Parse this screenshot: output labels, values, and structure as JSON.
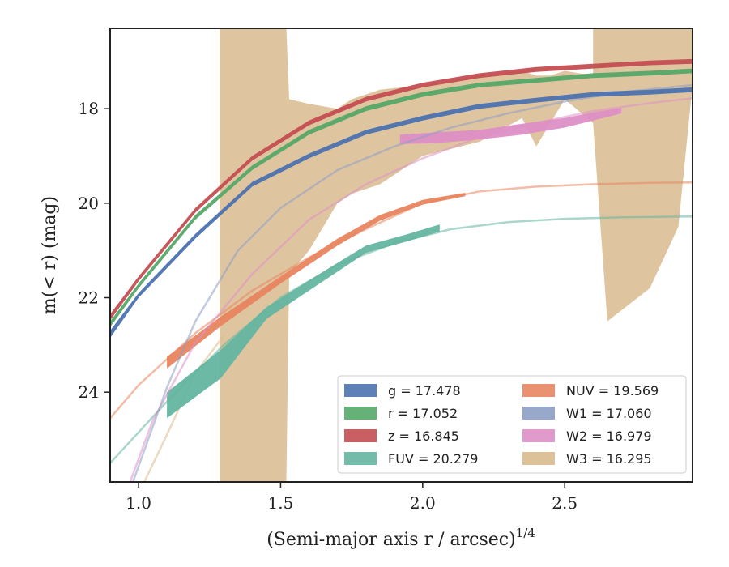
{
  "chart_data": {
    "type": "line",
    "title": "",
    "xlabel": "(Semi-major axis r / arcsec)",
    "xlabel_super": "1/4",
    "ylabel": "m(< r) (mag)",
    "xlim": [
      0.9,
      2.95
    ],
    "ylim": [
      25.9,
      16.3
    ],
    "y_inverted": true,
    "grid": false,
    "legend_position": "lower-right",
    "x_ticks": [
      {
        "value": 1.0,
        "label": "1.0"
      },
      {
        "value": 1.5,
        "label": "1.5"
      },
      {
        "value": 2.0,
        "label": "2.0"
      },
      {
        "value": 2.5,
        "label": "2.5"
      }
    ],
    "y_ticks": [
      {
        "value": 18,
        "label": "18"
      },
      {
        "value": 20,
        "label": "20"
      },
      {
        "value": 22,
        "label": "22"
      },
      {
        "value": 24,
        "label": "24"
      }
    ],
    "series": [
      {
        "name": "g = 17.478",
        "legend_label": "g = 17.478",
        "color": "#4c72b0",
        "band": [
          [
            0.9,
            22.7,
            22.85
          ],
          [
            1.0,
            21.9,
            22.0
          ],
          [
            1.2,
            20.65,
            20.75
          ],
          [
            1.4,
            19.55,
            19.65
          ],
          [
            1.6,
            18.95,
            19.05
          ],
          [
            1.8,
            18.45,
            18.55
          ],
          [
            2.0,
            18.15,
            18.25
          ],
          [
            2.2,
            17.9,
            18.0
          ],
          [
            2.4,
            17.77,
            17.87
          ],
          [
            2.6,
            17.65,
            17.75
          ],
          [
            2.8,
            17.6,
            17.7
          ],
          [
            2.95,
            17.55,
            17.65
          ]
        ],
        "curve_main": [],
        "curve_ext": []
      },
      {
        "name": "r = 17.052",
        "legend_label": "r = 17.052",
        "color": "#55a868",
        "band": [
          [
            0.9,
            22.5,
            22.62
          ],
          [
            1.0,
            21.7,
            21.8
          ],
          [
            1.2,
            20.25,
            20.35
          ],
          [
            1.4,
            19.2,
            19.3
          ],
          [
            1.6,
            18.45,
            18.55
          ],
          [
            1.8,
            17.95,
            18.05
          ],
          [
            2.0,
            17.65,
            17.75
          ],
          [
            2.2,
            17.45,
            17.55
          ],
          [
            2.4,
            17.35,
            17.45
          ],
          [
            2.6,
            17.25,
            17.35
          ],
          [
            2.8,
            17.2,
            17.3
          ],
          [
            2.95,
            17.15,
            17.25
          ]
        ],
        "curve_main": [],
        "curve_ext": []
      },
      {
        "name": "z = 16.845",
        "legend_label": "z = 16.845",
        "color": "#c44e52",
        "band": [
          [
            0.9,
            22.35,
            22.48
          ],
          [
            1.0,
            21.55,
            21.65
          ],
          [
            1.2,
            20.1,
            20.2
          ],
          [
            1.4,
            19.0,
            19.1
          ],
          [
            1.6,
            18.25,
            18.35
          ],
          [
            1.8,
            17.75,
            17.85
          ],
          [
            2.0,
            17.45,
            17.55
          ],
          [
            2.2,
            17.25,
            17.35
          ],
          [
            2.4,
            17.12,
            17.22
          ],
          [
            2.6,
            17.05,
            17.15
          ],
          [
            2.8,
            16.98,
            17.08
          ],
          [
            2.95,
            16.95,
            17.05
          ]
        ],
        "curve_main": [],
        "curve_ext": []
      },
      {
        "name": "FUV = 20.279",
        "legend_label": "FUV = 20.279",
        "color": "#64b5a0",
        "band": [
          [
            1.1,
            24.0,
            24.55
          ],
          [
            1.29,
            23.1,
            23.7
          ],
          [
            1.45,
            22.2,
            22.45
          ],
          [
            1.65,
            21.45,
            21.65
          ],
          [
            1.8,
            20.9,
            21.05
          ],
          [
            1.95,
            20.65,
            20.8
          ],
          [
            2.06,
            20.45,
            20.6
          ]
        ],
        "curve_main": [],
        "curve_ext": [
          [
            0.9,
            25.5
          ],
          [
            1.1,
            24.2
          ],
          [
            1.3,
            23.0
          ],
          [
            1.5,
            22.0
          ],
          [
            1.7,
            21.3
          ],
          [
            1.9,
            20.85
          ],
          [
            2.1,
            20.55
          ],
          [
            2.3,
            20.4
          ],
          [
            2.5,
            20.33
          ],
          [
            2.7,
            20.3
          ],
          [
            2.95,
            20.28
          ]
        ]
      },
      {
        "name": "NUV = 19.569",
        "legend_label": "NUV = 19.569",
        "color": "#e8855f",
        "band": [
          [
            1.1,
            23.25,
            23.5
          ],
          [
            1.29,
            22.4,
            22.6
          ],
          [
            1.5,
            21.55,
            21.7
          ],
          [
            1.7,
            20.75,
            20.9
          ],
          [
            1.85,
            20.25,
            20.37
          ],
          [
            2.0,
            19.93,
            20.03
          ],
          [
            2.15,
            19.78,
            19.85
          ]
        ],
        "curve_main": [],
        "curve_ext": [
          [
            0.9,
            24.55
          ],
          [
            1.0,
            23.85
          ],
          [
            1.2,
            22.75
          ],
          [
            1.4,
            21.85
          ],
          [
            1.6,
            21.15
          ],
          [
            1.8,
            20.55
          ],
          [
            2.0,
            20.0
          ],
          [
            2.2,
            19.75
          ],
          [
            2.4,
            19.65
          ],
          [
            2.6,
            19.6
          ],
          [
            2.8,
            19.57
          ],
          [
            2.95,
            19.56
          ]
        ]
      },
      {
        "name": "W1 = 17.060",
        "legend_label": "W1 = 17.060",
        "color": "#8c9ec4",
        "band": [],
        "curve_main": [],
        "curve_ext": [
          [
            0.98,
            25.9
          ],
          [
            1.1,
            23.9
          ],
          [
            1.2,
            22.5
          ],
          [
            1.35,
            21.0
          ],
          [
            1.5,
            20.1
          ],
          [
            1.7,
            19.3
          ],
          [
            1.9,
            18.8
          ],
          [
            2.1,
            18.4
          ],
          [
            2.3,
            18.1
          ],
          [
            2.5,
            17.85
          ],
          [
            2.7,
            17.65
          ],
          [
            2.95,
            17.5
          ]
        ]
      },
      {
        "name": "W2 = 16.979",
        "legend_label": "W2 = 16.979",
        "color": "#dd8fc6",
        "band": [
          [
            1.92,
            18.55,
            18.75
          ],
          [
            2.05,
            18.5,
            18.73
          ],
          [
            2.2,
            18.45,
            18.65
          ],
          [
            2.35,
            18.32,
            18.55
          ],
          [
            2.5,
            18.2,
            18.4
          ],
          [
            2.6,
            18.08,
            18.25
          ],
          [
            2.7,
            17.98,
            18.1
          ]
        ],
        "curve_main": [],
        "curve_ext": [
          [
            0.97,
            25.9
          ],
          [
            1.05,
            24.6
          ],
          [
            1.2,
            22.95
          ],
          [
            1.4,
            21.5
          ],
          [
            1.6,
            20.35
          ],
          [
            1.8,
            19.6
          ],
          [
            2.0,
            19.05
          ],
          [
            2.2,
            18.6
          ],
          [
            2.4,
            18.3
          ],
          [
            2.6,
            18.05
          ],
          [
            2.8,
            17.88
          ],
          [
            2.95,
            17.78
          ]
        ]
      },
      {
        "name": "W3 = 16.295",
        "legend_label": "W3 = 16.295",
        "color": "#d9bb8e",
        "band": [
          [
            1.285,
            16.3,
            25.9
          ],
          [
            1.52,
            16.3,
            25.9
          ],
          [
            1.53,
            17.8,
            21.5
          ],
          [
            1.6,
            17.9,
            21.0
          ],
          [
            1.7,
            18.0,
            20.0
          ],
          [
            1.75,
            17.8,
            19.8
          ],
          [
            1.85,
            17.6,
            19.6
          ],
          [
            2.0,
            17.5,
            19.0
          ],
          [
            2.2,
            17.3,
            18.7
          ],
          [
            2.35,
            17.2,
            18.2
          ],
          [
            2.4,
            17.3,
            18.8
          ],
          [
            2.45,
            17.3,
            18.3
          ],
          [
            2.5,
            17.2,
            17.8
          ],
          [
            2.6,
            17.3,
            18.3
          ],
          [
            2.6,
            16.3,
            18.3
          ],
          [
            2.65,
            16.3,
            22.5
          ],
          [
            2.8,
            16.3,
            21.8
          ],
          [
            2.9,
            16.3,
            20.5
          ],
          [
            2.95,
            16.3,
            17.5
          ]
        ],
        "curve_main": [],
        "curve_ext": [
          [
            1.02,
            25.9
          ],
          [
            1.1,
            24.9
          ],
          [
            1.2,
            23.6
          ],
          [
            1.3,
            22.8
          ]
        ]
      }
    ]
  }
}
